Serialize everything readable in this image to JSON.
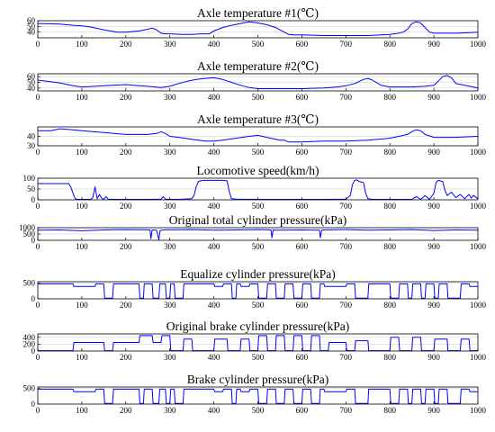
{
  "figure": {
    "line_color": "#0000ff",
    "x_ticks": [
      0,
      100,
      200,
      300,
      400,
      500,
      600,
      700,
      800,
      900,
      1000
    ]
  },
  "chart_data": [
    {
      "type": "line",
      "title": "Axle temperature #1(℃)",
      "xlim": [
        0,
        1000
      ],
      "ylim": [
        30,
        60
      ],
      "y_ticks": [
        40,
        50,
        60
      ],
      "grid": "horizontal",
      "series": [
        {
          "x": [
            0,
            20,
            50,
            80,
            100,
            120,
            150,
            180,
            200,
            230,
            250,
            260,
            270,
            280,
            290,
            300,
            330,
            350,
            370,
            380,
            390,
            400,
            420,
            440,
            460,
            480,
            500,
            520,
            540,
            560,
            570,
            580,
            600,
            650,
            700,
            750,
            780,
            800,
            820,
            830,
            840,
            850,
            860,
            870,
            880,
            890,
            900,
            920,
            950,
            980,
            1000
          ],
          "y": [
            55,
            55,
            54,
            52,
            51,
            49,
            44,
            40,
            40,
            42,
            45,
            47,
            44,
            38,
            37,
            37,
            36,
            36,
            37,
            37,
            37,
            42,
            48,
            52,
            55,
            58,
            56,
            53,
            48,
            40,
            36,
            35,
            35,
            34,
            34,
            34,
            35,
            36,
            38,
            40,
            45,
            55,
            58,
            56,
            48,
            40,
            38,
            38,
            38,
            39,
            40
          ]
        }
      ]
    },
    {
      "type": "line",
      "title": "Axle temperature #2(℃)",
      "xlim": [
        0,
        1000
      ],
      "ylim": [
        35,
        65
      ],
      "y_ticks": [
        40,
        50,
        60
      ],
      "grid": "horizontal",
      "series": [
        {
          "x": [
            0,
            20,
            50,
            80,
            100,
            130,
            150,
            200,
            230,
            250,
            280,
            300,
            320,
            340,
            360,
            380,
            400,
            420,
            440,
            460,
            480,
            500,
            550,
            600,
            650,
            680,
            700,
            720,
            740,
            750,
            760,
            780,
            800,
            850,
            880,
            900,
            910,
            920,
            930,
            940,
            950,
            970,
            1000
          ],
          "y": [
            54,
            52,
            49,
            44,
            42,
            43,
            44,
            46,
            44,
            43,
            41,
            43,
            48,
            52,
            55,
            57,
            58,
            55,
            50,
            45,
            41,
            39,
            39,
            39,
            40,
            42,
            44,
            48,
            55,
            57,
            54,
            45,
            42,
            42,
            43,
            45,
            52,
            60,
            62,
            58,
            48,
            45,
            40
          ]
        }
      ]
    },
    {
      "type": "line",
      "title": "Axle temperature #3(℃)",
      "xlim": [
        0,
        1000
      ],
      "ylim": [
        30,
        50
      ],
      "y_ticks": [
        30,
        40
      ],
      "grid": "horizontal",
      "series": [
        {
          "x": [
            0,
            30,
            50,
            80,
            100,
            150,
            200,
            250,
            270,
            280,
            290,
            300,
            320,
            350,
            380,
            400,
            420,
            450,
            480,
            500,
            520,
            550,
            560,
            570,
            600,
            650,
            700,
            750,
            800,
            820,
            840,
            850,
            860,
            870,
            880,
            900,
            950,
            1000
          ],
          "y": [
            46,
            46,
            48,
            47,
            46,
            44,
            42,
            42,
            43,
            45,
            43,
            40,
            39,
            37,
            35,
            35,
            36,
            38,
            40,
            41,
            39,
            36,
            36,
            34,
            34,
            35,
            35,
            36,
            38,
            40,
            42,
            45,
            47,
            46,
            42,
            39,
            39,
            40
          ]
        }
      ]
    },
    {
      "type": "line",
      "title": "Locomotive speed(km/h)",
      "xlim": [
        0,
        1000
      ],
      "ylim": [
        0,
        100
      ],
      "y_ticks": [
        0,
        50,
        100
      ],
      "grid": "horizontal",
      "series": [
        {
          "x": [
            0,
            70,
            75,
            80,
            85,
            90,
            120,
            125,
            130,
            135,
            140,
            145,
            150,
            155,
            160,
            170,
            200,
            250,
            280,
            285,
            290,
            300,
            320,
            350,
            355,
            360,
            365,
            370,
            380,
            420,
            430,
            435,
            440,
            450,
            500,
            550,
            600,
            650,
            700,
            710,
            715,
            720,
            725,
            730,
            740,
            745,
            750,
            760,
            800,
            850,
            860,
            870,
            880,
            890,
            900,
            905,
            910,
            920,
            925,
            930,
            940,
            950,
            960,
            970,
            980,
            985,
            990,
            1000
          ],
          "y": [
            75,
            75,
            60,
            30,
            5,
            2,
            2,
            10,
            60,
            5,
            25,
            8,
            3,
            15,
            3,
            2,
            2,
            2,
            3,
            15,
            3,
            2,
            2,
            5,
            20,
            60,
            85,
            88,
            90,
            90,
            88,
            40,
            5,
            3,
            2,
            2,
            2,
            2,
            3,
            20,
            70,
            90,
            92,
            85,
            80,
            30,
            5,
            2,
            2,
            2,
            15,
            2,
            20,
            2,
            30,
            80,
            90,
            85,
            45,
            20,
            35,
            10,
            25,
            5,
            25,
            8,
            20,
            5
          ]
        }
      ]
    },
    {
      "type": "line",
      "title": "Original total cylinder pressure(kPa)",
      "xlim": [
        0,
        1000
      ],
      "ylim": [
        0,
        1000
      ],
      "y_ticks": [
        0,
        500,
        1000
      ],
      "grid": "horizontal",
      "series": [
        {
          "x": [
            0,
            50,
            100,
            150,
            200,
            250,
            255,
            257,
            260,
            270,
            275,
            278,
            281,
            290,
            350,
            400,
            450,
            500,
            530,
            532,
            535,
            540,
            600,
            640,
            642,
            645,
            650,
            700,
            750,
            800,
            850,
            900,
            950,
            1000
          ],
          "y": [
            800,
            820,
            760,
            820,
            850,
            830,
            820,
            120,
            820,
            800,
            50,
            780,
            800,
            830,
            850,
            800,
            820,
            850,
            820,
            200,
            820,
            800,
            820,
            800,
            200,
            800,
            820,
            850,
            800,
            820,
            850,
            780,
            820,
            800
          ]
        }
      ]
    },
    {
      "type": "line",
      "title": "Equalize cylinder pressure(kPa)",
      "xlim": [
        0,
        1000
      ],
      "ylim": [
        0,
        550
      ],
      "y_ticks": [
        0,
        500
      ],
      "grid": "horizontal",
      "series": [
        {
          "x": [
            0,
            80,
            82,
            130,
            132,
            150,
            152,
            170,
            172,
            230,
            232,
            240,
            242,
            260,
            262,
            275,
            277,
            290,
            292,
            300,
            302,
            310,
            312,
            330,
            332,
            350,
            352,
            400,
            402,
            420,
            422,
            440,
            442,
            450,
            452,
            460,
            462,
            480,
            482,
            500,
            502,
            520,
            522,
            540,
            542,
            560,
            562,
            580,
            582,
            600,
            602,
            620,
            622,
            640,
            642,
            650,
            652,
            700,
            702,
            720,
            722,
            750,
            752,
            800,
            802,
            820,
            822,
            840,
            842,
            850,
            852,
            870,
            872,
            880,
            882,
            900,
            902,
            910,
            912,
            930,
            932,
            960,
            962,
            980,
            982,
            1000
          ],
          "y": [
            480,
            480,
            400,
            400,
            480,
            480,
            20,
            20,
            480,
            480,
            20,
            20,
            480,
            480,
            20,
            20,
            480,
            480,
            20,
            20,
            480,
            480,
            20,
            20,
            480,
            480,
            480,
            480,
            400,
            400,
            480,
            480,
            20,
            20,
            480,
            480,
            400,
            400,
            480,
            480,
            20,
            20,
            480,
            480,
            20,
            20,
            480,
            480,
            20,
            20,
            480,
            480,
            20,
            20,
            480,
            480,
            400,
            400,
            480,
            480,
            20,
            20,
            480,
            480,
            20,
            20,
            480,
            480,
            20,
            20,
            480,
            480,
            20,
            20,
            480,
            480,
            20,
            20,
            480,
            480,
            20,
            20,
            480,
            480,
            400,
            400
          ]
        }
      ]
    },
    {
      "type": "line",
      "title": "Original brake cylinder pressure(kPa)",
      "xlim": [
        0,
        1000
      ],
      "ylim": [
        0,
        500
      ],
      "y_ticks": [
        0,
        200,
        400
      ],
      "grid": "horizontal",
      "series": [
        {
          "x": [
            0,
            80,
            82,
            150,
            152,
            170,
            172,
            230,
            232,
            260,
            262,
            280,
            282,
            300,
            302,
            330,
            332,
            350,
            352,
            400,
            402,
            430,
            432,
            460,
            462,
            480,
            482,
            500,
            502,
            520,
            522,
            540,
            542,
            560,
            562,
            580,
            582,
            600,
            602,
            620,
            622,
            640,
            642,
            660,
            662,
            700,
            702,
            720,
            722,
            750,
            752,
            800,
            802,
            820,
            822,
            850,
            852,
            870,
            872,
            900,
            902,
            930,
            932,
            960,
            962,
            980,
            982,
            1000
          ],
          "y": [
            10,
            10,
            250,
            250,
            10,
            10,
            250,
            250,
            450,
            450,
            250,
            250,
            450,
            450,
            10,
            10,
            350,
            350,
            10,
            10,
            350,
            350,
            10,
            10,
            350,
            350,
            10,
            10,
            450,
            450,
            10,
            10,
            450,
            450,
            10,
            10,
            450,
            450,
            10,
            10,
            450,
            450,
            10,
            10,
            250,
            250,
            10,
            10,
            300,
            300,
            10,
            10,
            400,
            400,
            10,
            10,
            400,
            400,
            10,
            10,
            350,
            350,
            10,
            10,
            350,
            350,
            10,
            10
          ]
        }
      ]
    },
    {
      "type": "line",
      "title": "Brake cylinder pressure(kPa)",
      "xlim": [
        0,
        1000
      ],
      "ylim": [
        0,
        550
      ],
      "y_ticks": [
        0,
        500
      ],
      "grid": "horizontal",
      "series": [
        {
          "x": [
            0,
            80,
            82,
            130,
            132,
            150,
            152,
            170,
            172,
            230,
            232,
            240,
            242,
            260,
            262,
            275,
            277,
            290,
            292,
            300,
            302,
            310,
            312,
            330,
            332,
            350,
            352,
            400,
            402,
            420,
            422,
            440,
            442,
            450,
            452,
            460,
            462,
            480,
            482,
            500,
            502,
            520,
            522,
            540,
            542,
            560,
            562,
            580,
            582,
            600,
            602,
            620,
            622,
            640,
            642,
            650,
            652,
            700,
            702,
            720,
            722,
            750,
            752,
            800,
            802,
            820,
            822,
            840,
            842,
            850,
            852,
            870,
            872,
            880,
            882,
            900,
            902,
            910,
            912,
            930,
            932,
            960,
            962,
            980,
            982,
            1000
          ],
          "y": [
            480,
            480,
            400,
            400,
            480,
            480,
            20,
            20,
            480,
            480,
            20,
            20,
            480,
            480,
            20,
            20,
            480,
            480,
            20,
            20,
            480,
            480,
            20,
            20,
            480,
            480,
            480,
            480,
            400,
            400,
            480,
            480,
            20,
            20,
            480,
            480,
            400,
            400,
            480,
            480,
            20,
            20,
            480,
            480,
            20,
            20,
            480,
            480,
            20,
            20,
            480,
            480,
            20,
            20,
            480,
            480,
            400,
            400,
            480,
            480,
            20,
            20,
            480,
            480,
            20,
            20,
            480,
            480,
            20,
            20,
            480,
            480,
            20,
            20,
            480,
            480,
            20,
            20,
            480,
            480,
            20,
            20,
            480,
            480,
            400,
            400
          ]
        }
      ]
    }
  ]
}
